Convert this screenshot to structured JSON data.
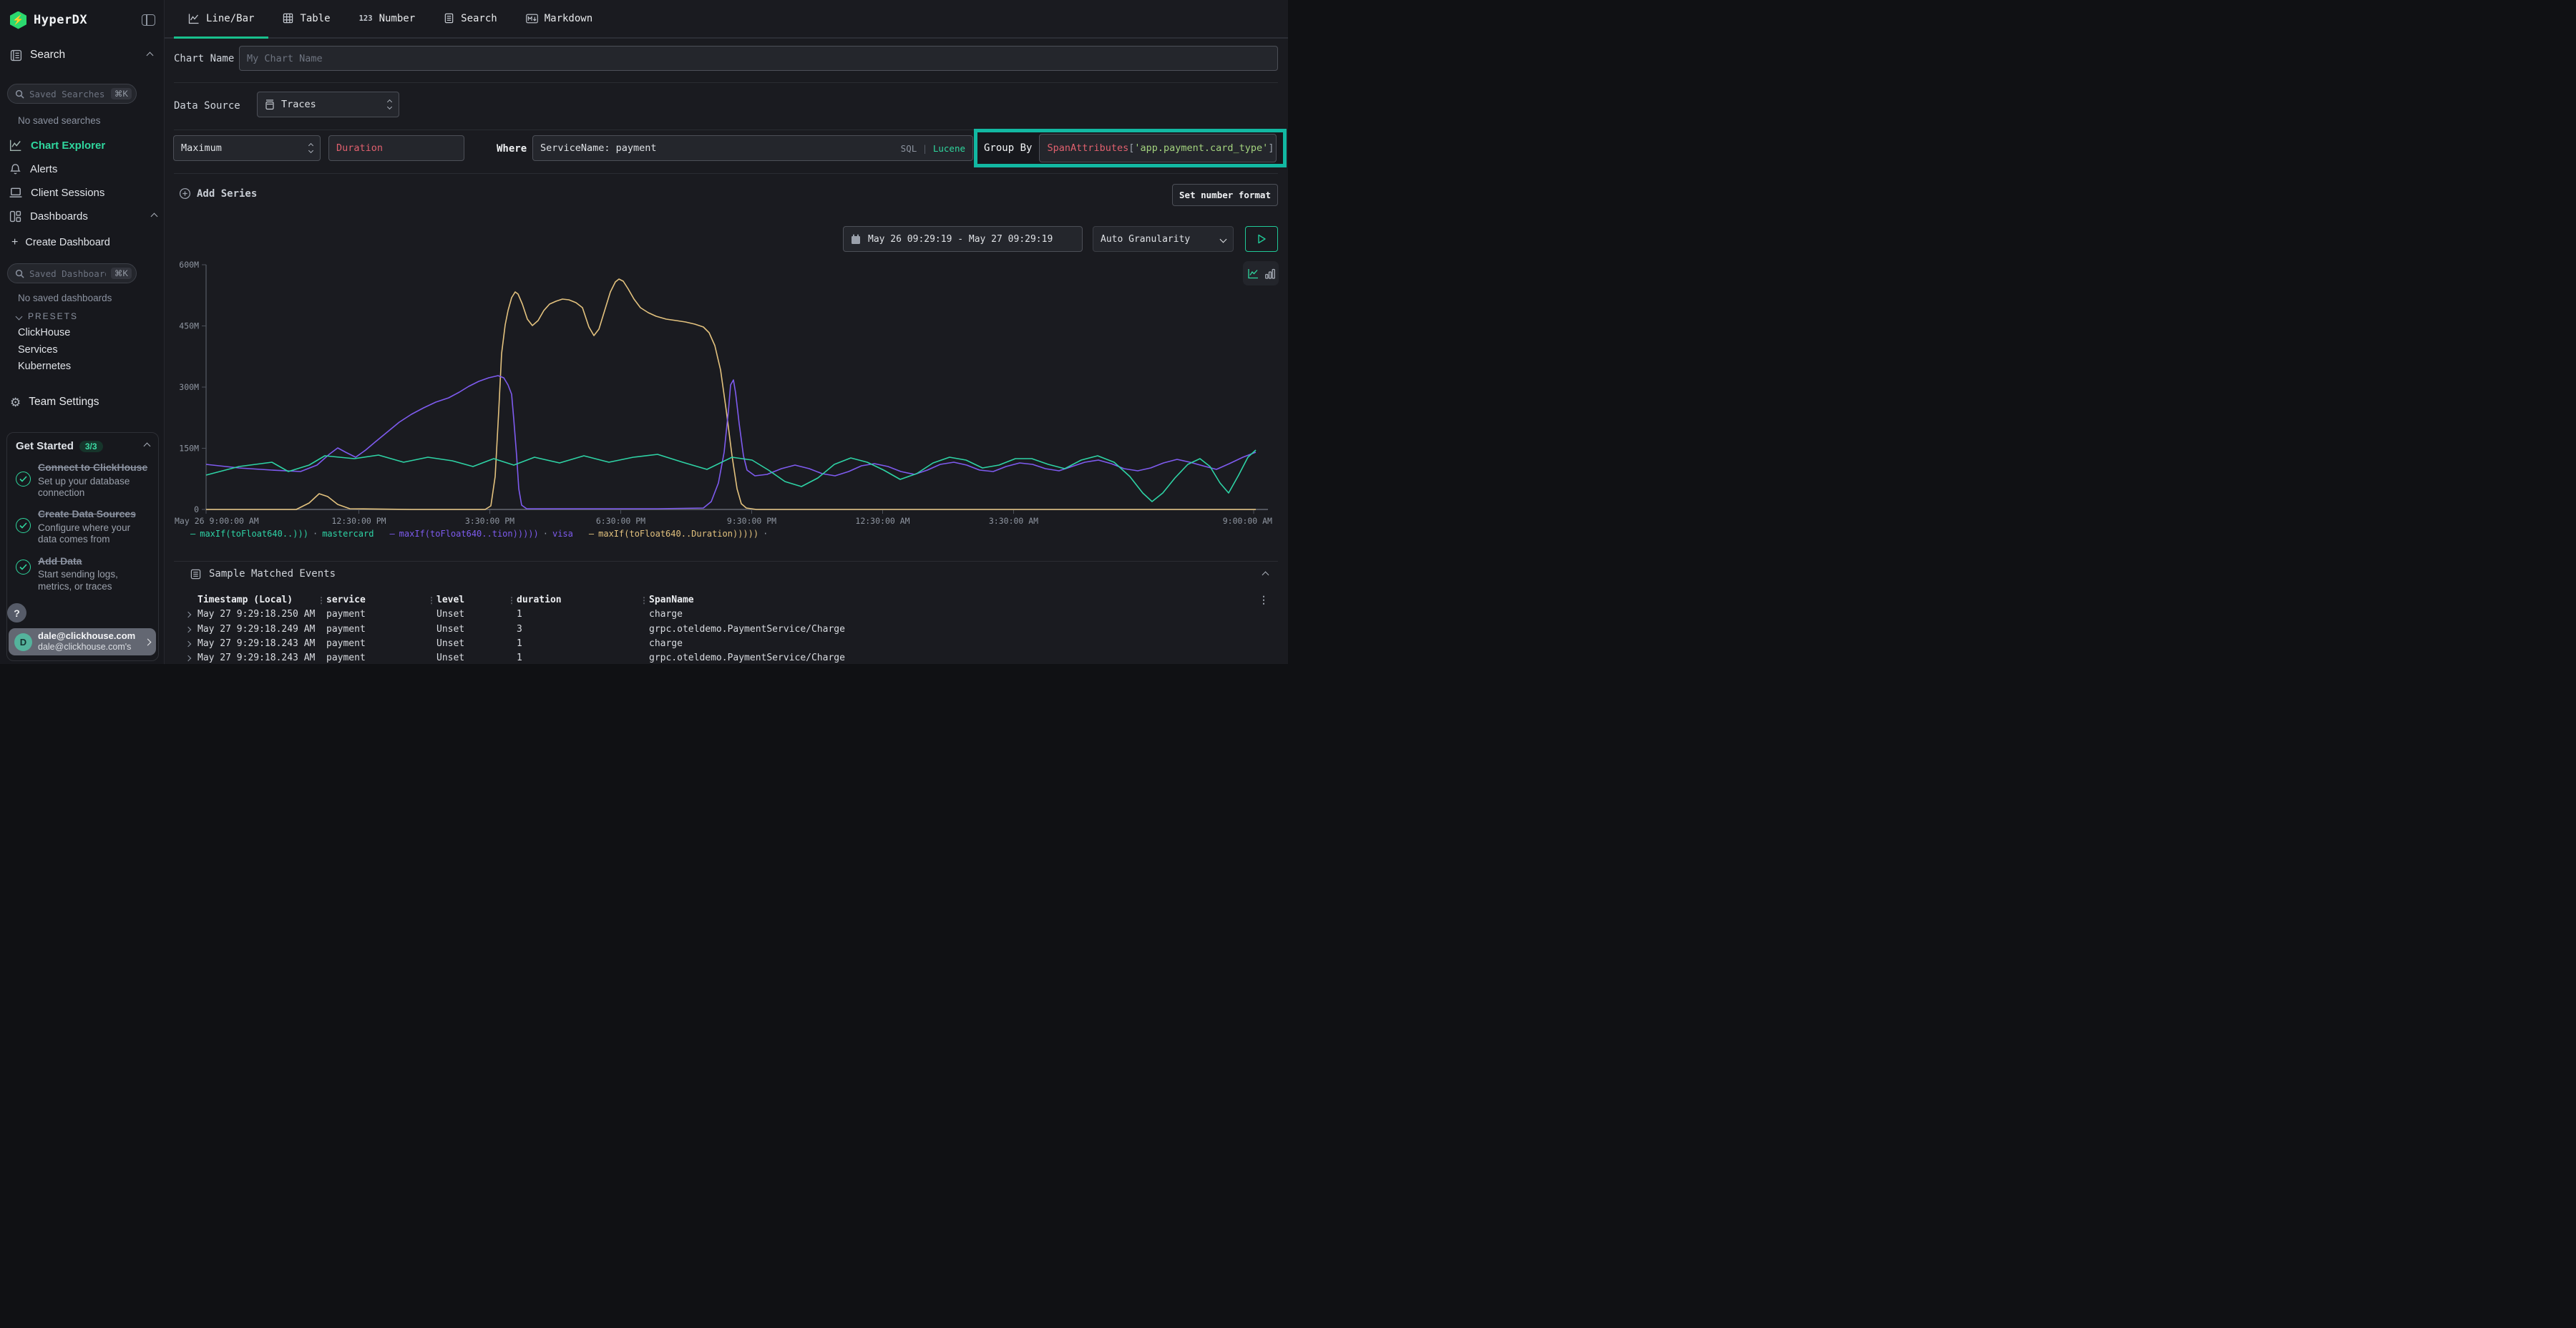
{
  "sidebar": {
    "logo_text": "HyperDX",
    "search_section_label": "Search",
    "saved_searches": {
      "placeholder": "Saved Searches",
      "shortcut": "⌘K"
    },
    "no_saved_searches": "No saved searches",
    "nav": [
      {
        "label": "Chart Explorer"
      },
      {
        "label": "Alerts"
      },
      {
        "label": "Client Sessions"
      },
      {
        "label": "Dashboards"
      }
    ],
    "create_dashboard_label": "Create Dashboard",
    "saved_dashboards": {
      "placeholder": "Saved Dashboards",
      "shortcut": "⌘K"
    },
    "no_saved_dashboards": "No saved dashboards",
    "presets_label": "PRESETS",
    "presets": [
      {
        "label": "ClickHouse"
      },
      {
        "label": "Services"
      },
      {
        "label": "Kubernetes"
      }
    ],
    "team_settings_label": "Team Settings",
    "get_started": {
      "title": "Get Started",
      "badge": "3/3",
      "items": [
        {
          "title": "Connect to ClickHouse",
          "desc": "Set up your database connection"
        },
        {
          "title": "Create Data Sources",
          "desc": "Configure where your data comes from"
        },
        {
          "title": "Add Data",
          "desc": "Start sending logs, metrics, or traces"
        }
      ]
    },
    "help_label": "?",
    "user": {
      "avatar": "D",
      "email": "dale@clickhouse.com",
      "subtext": "dale@clickhouse.com's"
    }
  },
  "tabs": [
    {
      "label": "Line/Bar",
      "active": true
    },
    {
      "label": "Table"
    },
    {
      "label": "Number"
    },
    {
      "label": "Search"
    },
    {
      "label": "Markdown"
    }
  ],
  "form": {
    "chart_name_label": "Chart Name",
    "chart_name_placeholder": "My Chart Name",
    "data_source_label": "Data Source",
    "data_source_value": "Traces",
    "aggregation_value": "Maximum",
    "field_value": "Duration",
    "where_label": "Where",
    "where_value": "ServiceName: payment",
    "sql_label": "SQL",
    "lucene_label": "Lucene",
    "group_by_label": "Group By",
    "group_by_tokens": {
      "fn": "SpanAttributes",
      "open": "[",
      "key": "'app.payment.card_type'",
      "close": "]"
    },
    "add_series_label": "Add Series",
    "set_number_format_label": "Set number format"
  },
  "controls": {
    "date_range": "May 26 09:29:19 - May 27 09:29:19",
    "granularity": "Auto Granularity"
  },
  "chart_data": {
    "type": "line",
    "legend_dash": "—",
    "legend_sep": "·",
    "ylim_label": "0 to 600M (nanoseconds)",
    "x_scale": "61px per hour starting May 26 9:00:00 AM",
    "y_scale": "342px = 600M, baseline y=342 is 0",
    "y_ticks": [
      "600M",
      "450M",
      "300M",
      "150M",
      "0"
    ],
    "x_ticks": [
      {
        "label": "May 26 9:00:00 AM",
        "hour": 0
      },
      {
        "label": "12:30:00 PM",
        "hour": 3.5
      },
      {
        "label": "3:30:00 PM",
        "hour": 6.5
      },
      {
        "label": "6:30:00 PM",
        "hour": 9.5
      },
      {
        "label": "9:30:00 PM",
        "hour": 12.5
      },
      {
        "label": "12:30:00 AM",
        "hour": 15.5
      },
      {
        "label": "3:30:00 AM",
        "hour": 18.5
      },
      {
        "label": "9:00:00 AM",
        "hour": 24
      }
    ],
    "series": [
      {
        "name": "maxIf(toFloat640..)))",
        "group": "mastercard",
        "color": "#2ed3a5",
        "points": [
          [
            0,
            294
          ],
          [
            46,
            282
          ],
          [
            92,
            276
          ],
          [
            115,
            289
          ],
          [
            144,
            280
          ],
          [
            166,
            267
          ],
          [
            207,
            271
          ],
          [
            241,
            266
          ],
          [
            276,
            276
          ],
          [
            310,
            269
          ],
          [
            344,
            274
          ],
          [
            373,
            282
          ],
          [
            402,
            271
          ],
          [
            430,
            280
          ],
          [
            459,
            269
          ],
          [
            494,
            277
          ],
          [
            528,
            267
          ],
          [
            563,
            276
          ],
          [
            597,
            269
          ],
          [
            631,
            265
          ],
          [
            666,
            276
          ],
          [
            700,
            286
          ],
          [
            735,
            269
          ],
          [
            763,
            273
          ],
          [
            786,
            287
          ],
          [
            809,
            303
          ],
          [
            832,
            310
          ],
          [
            855,
            298
          ],
          [
            878,
            279
          ],
          [
            901,
            270
          ],
          [
            924,
            276
          ],
          [
            947,
            287
          ],
          [
            970,
            300
          ],
          [
            993,
            292
          ],
          [
            1016,
            277
          ],
          [
            1039,
            269
          ],
          [
            1062,
            273
          ],
          [
            1085,
            284
          ],
          [
            1108,
            280
          ],
          [
            1131,
            271
          ],
          [
            1154,
            271
          ],
          [
            1177,
            279
          ],
          [
            1200,
            285
          ],
          [
            1223,
            273
          ],
          [
            1246,
            267
          ],
          [
            1269,
            276
          ],
          [
            1291,
            296
          ],
          [
            1309,
            319
          ],
          [
            1322,
            331
          ],
          [
            1337,
            319
          ],
          [
            1354,
            298
          ],
          [
            1372,
            279
          ],
          [
            1389,
            271
          ],
          [
            1403,
            282
          ],
          [
            1417,
            305
          ],
          [
            1429,
            319
          ],
          [
            1443,
            294
          ],
          [
            1456,
            269
          ],
          [
            1467,
            259
          ]
        ]
      },
      {
        "name": "maxIf(toFloat640..tion)))))",
        "group": "visa",
        "color": "#7e5bef",
        "points": [
          [
            0,
            279
          ],
          [
            46,
            284
          ],
          [
            92,
            287
          ],
          [
            132,
            289
          ],
          [
            155,
            280
          ],
          [
            172,
            265
          ],
          [
            184,
            256
          ],
          [
            195,
            262
          ],
          [
            209,
            269
          ],
          [
            223,
            259
          ],
          [
            236,
            248
          ],
          [
            253,
            234
          ],
          [
            270,
            220
          ],
          [
            287,
            209
          ],
          [
            304,
            200
          ],
          [
            321,
            192
          ],
          [
            339,
            186
          ],
          [
            354,
            178
          ],
          [
            367,
            170
          ],
          [
            381,
            163
          ],
          [
            395,
            158
          ],
          [
            408,
            155
          ],
          [
            416,
            158
          ],
          [
            422,
            168
          ],
          [
            427,
            181
          ],
          [
            430,
            216
          ],
          [
            434,
            267
          ],
          [
            437,
            313
          ],
          [
            441,
            336
          ],
          [
            448,
            341
          ],
          [
            517,
            341
          ],
          [
            631,
            341
          ],
          [
            695,
            340
          ],
          [
            706,
            331
          ],
          [
            716,
            305
          ],
          [
            724,
            262
          ],
          [
            730,
            204
          ],
          [
            733,
            168
          ],
          [
            737,
            161
          ],
          [
            740,
            179
          ],
          [
            745,
            222
          ],
          [
            751,
            267
          ],
          [
            756,
            287
          ],
          [
            767,
            295
          ],
          [
            784,
            293
          ],
          [
            804,
            285
          ],
          [
            823,
            280
          ],
          [
            843,
            285
          ],
          [
            861,
            292
          ],
          [
            879,
            295
          ],
          [
            898,
            289
          ],
          [
            916,
            281
          ],
          [
            934,
            278
          ],
          [
            953,
            282
          ],
          [
            971,
            289
          ],
          [
            990,
            293
          ],
          [
            1008,
            287
          ],
          [
            1026,
            279
          ],
          [
            1045,
            276
          ],
          [
            1063,
            280
          ],
          [
            1081,
            287
          ],
          [
            1100,
            289
          ],
          [
            1118,
            282
          ],
          [
            1137,
            277
          ],
          [
            1155,
            279
          ],
          [
            1173,
            285
          ],
          [
            1192,
            288
          ],
          [
            1210,
            282
          ],
          [
            1228,
            276
          ],
          [
            1247,
            273
          ],
          [
            1265,
            278
          ],
          [
            1283,
            285
          ],
          [
            1302,
            288
          ],
          [
            1320,
            284
          ],
          [
            1338,
            277
          ],
          [
            1357,
            272
          ],
          [
            1375,
            276
          ],
          [
            1393,
            281
          ],
          [
            1412,
            286
          ],
          [
            1430,
            278
          ],
          [
            1449,
            269
          ],
          [
            1467,
            262
          ]
        ]
      },
      {
        "name": "maxIf(toFloat640..Duration)))))",
        "group": "",
        "color": "#e3c27e",
        "points": [
          [
            0,
            342
          ],
          [
            126,
            342
          ],
          [
            144,
            333
          ],
          [
            158,
            320
          ],
          [
            170,
            324
          ],
          [
            184,
            335
          ],
          [
            201,
            341
          ],
          [
            287,
            342
          ],
          [
            390,
            342
          ],
          [
            398,
            337
          ],
          [
            404,
            296
          ],
          [
            409,
            204
          ],
          [
            413,
            124
          ],
          [
            418,
            84
          ],
          [
            422,
            64
          ],
          [
            427,
            46
          ],
          [
            432,
            38
          ],
          [
            436,
            41
          ],
          [
            442,
            55
          ],
          [
            449,
            76
          ],
          [
            456,
            85
          ],
          [
            464,
            78
          ],
          [
            472,
            64
          ],
          [
            480,
            55
          ],
          [
            489,
            51
          ],
          [
            498,
            48
          ],
          [
            507,
            49
          ],
          [
            517,
            53
          ],
          [
            526,
            60
          ],
          [
            535,
            87
          ],
          [
            542,
            99
          ],
          [
            549,
            90
          ],
          [
            557,
            64
          ],
          [
            565,
            38
          ],
          [
            572,
            24
          ],
          [
            577,
            20
          ],
          [
            583,
            23
          ],
          [
            590,
            34
          ],
          [
            598,
            48
          ],
          [
            607,
            60
          ],
          [
            618,
            67
          ],
          [
            629,
            72
          ],
          [
            643,
            76
          ],
          [
            657,
            78
          ],
          [
            670,
            80
          ],
          [
            683,
            83
          ],
          [
            695,
            87
          ],
          [
            703,
            95
          ],
          [
            711,
            113
          ],
          [
            719,
            147
          ],
          [
            727,
            204
          ],
          [
            735,
            267
          ],
          [
            742,
            313
          ],
          [
            748,
            334
          ],
          [
            755,
            340
          ],
          [
            769,
            342
          ],
          [
            976,
            342
          ],
          [
            1205,
            342
          ],
          [
            1467,
            342
          ]
        ]
      }
    ]
  },
  "events": {
    "title": "Sample Matched Events",
    "columns": [
      "Timestamp (Local)",
      "service",
      "level",
      "duration",
      "SpanName"
    ],
    "rows": [
      [
        "May 27 9:29:18.250 AM",
        "payment",
        "Unset",
        "1",
        "charge"
      ],
      [
        "May 27 9:29:18.249 AM",
        "payment",
        "Unset",
        "3",
        "grpc.oteldemo.PaymentService/Charge"
      ],
      [
        "May 27 9:29:18.243 AM",
        "payment",
        "Unset",
        "1",
        "charge"
      ],
      [
        "May 27 9:29:18.243 AM",
        "payment",
        "Unset",
        "1",
        "grpc.oteldemo.PaymentService/Charge"
      ]
    ]
  }
}
